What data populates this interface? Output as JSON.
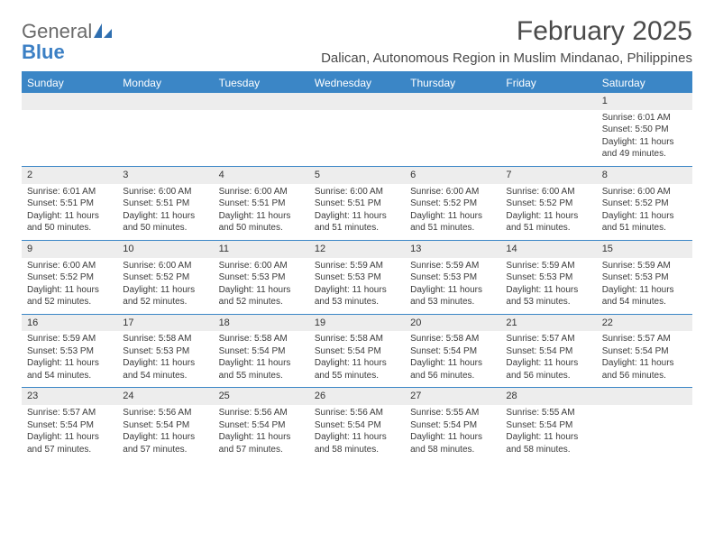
{
  "brand": {
    "word1": "General",
    "word2": "Blue",
    "color_general": "#6a6a6a",
    "color_blue": "#3b7fc4",
    "sail_color": "#2f6fb0"
  },
  "title": {
    "month_year": "February 2025",
    "location": "Dalican, Autonomous Region in Muslim Mindanao, Philippines",
    "title_color": "#4a4a4a",
    "title_fontsize": 30,
    "location_fontsize": 15
  },
  "style": {
    "header_bg": "#3b86c6",
    "header_text": "#ffffff",
    "daynum_bg": "#ededed",
    "row_divider": "#3b86c6",
    "cell_text": "#3a3a3a",
    "body_fontsize": 10,
    "daynum_fontsize": 11,
    "weekday_fontsize": 12
  },
  "weekdays": [
    "Sunday",
    "Monday",
    "Tuesday",
    "Wednesday",
    "Thursday",
    "Friday",
    "Saturday"
  ],
  "weeks": [
    {
      "nums": [
        "",
        "",
        "",
        "",
        "",
        "",
        "1"
      ],
      "cells": [
        null,
        null,
        null,
        null,
        null,
        null,
        {
          "sunrise": "6:01 AM",
          "sunset": "5:50 PM",
          "daylight": "11 hours and 49 minutes."
        }
      ]
    },
    {
      "nums": [
        "2",
        "3",
        "4",
        "5",
        "6",
        "7",
        "8"
      ],
      "cells": [
        {
          "sunrise": "6:01 AM",
          "sunset": "5:51 PM",
          "daylight": "11 hours and 50 minutes."
        },
        {
          "sunrise": "6:00 AM",
          "sunset": "5:51 PM",
          "daylight": "11 hours and 50 minutes."
        },
        {
          "sunrise": "6:00 AM",
          "sunset": "5:51 PM",
          "daylight": "11 hours and 50 minutes."
        },
        {
          "sunrise": "6:00 AM",
          "sunset": "5:51 PM",
          "daylight": "11 hours and 51 minutes."
        },
        {
          "sunrise": "6:00 AM",
          "sunset": "5:52 PM",
          "daylight": "11 hours and 51 minutes."
        },
        {
          "sunrise": "6:00 AM",
          "sunset": "5:52 PM",
          "daylight": "11 hours and 51 minutes."
        },
        {
          "sunrise": "6:00 AM",
          "sunset": "5:52 PM",
          "daylight": "11 hours and 51 minutes."
        }
      ]
    },
    {
      "nums": [
        "9",
        "10",
        "11",
        "12",
        "13",
        "14",
        "15"
      ],
      "cells": [
        {
          "sunrise": "6:00 AM",
          "sunset": "5:52 PM",
          "daylight": "11 hours and 52 minutes."
        },
        {
          "sunrise": "6:00 AM",
          "sunset": "5:52 PM",
          "daylight": "11 hours and 52 minutes."
        },
        {
          "sunrise": "6:00 AM",
          "sunset": "5:53 PM",
          "daylight": "11 hours and 52 minutes."
        },
        {
          "sunrise": "5:59 AM",
          "sunset": "5:53 PM",
          "daylight": "11 hours and 53 minutes."
        },
        {
          "sunrise": "5:59 AM",
          "sunset": "5:53 PM",
          "daylight": "11 hours and 53 minutes."
        },
        {
          "sunrise": "5:59 AM",
          "sunset": "5:53 PM",
          "daylight": "11 hours and 53 minutes."
        },
        {
          "sunrise": "5:59 AM",
          "sunset": "5:53 PM",
          "daylight": "11 hours and 54 minutes."
        }
      ]
    },
    {
      "nums": [
        "16",
        "17",
        "18",
        "19",
        "20",
        "21",
        "22"
      ],
      "cells": [
        {
          "sunrise": "5:59 AM",
          "sunset": "5:53 PM",
          "daylight": "11 hours and 54 minutes."
        },
        {
          "sunrise": "5:58 AM",
          "sunset": "5:53 PM",
          "daylight": "11 hours and 54 minutes."
        },
        {
          "sunrise": "5:58 AM",
          "sunset": "5:54 PM",
          "daylight": "11 hours and 55 minutes."
        },
        {
          "sunrise": "5:58 AM",
          "sunset": "5:54 PM",
          "daylight": "11 hours and 55 minutes."
        },
        {
          "sunrise": "5:58 AM",
          "sunset": "5:54 PM",
          "daylight": "11 hours and 56 minutes."
        },
        {
          "sunrise": "5:57 AM",
          "sunset": "5:54 PM",
          "daylight": "11 hours and 56 minutes."
        },
        {
          "sunrise": "5:57 AM",
          "sunset": "5:54 PM",
          "daylight": "11 hours and 56 minutes."
        }
      ]
    },
    {
      "nums": [
        "23",
        "24",
        "25",
        "26",
        "27",
        "28",
        ""
      ],
      "cells": [
        {
          "sunrise": "5:57 AM",
          "sunset": "5:54 PM",
          "daylight": "11 hours and 57 minutes."
        },
        {
          "sunrise": "5:56 AM",
          "sunset": "5:54 PM",
          "daylight": "11 hours and 57 minutes."
        },
        {
          "sunrise": "5:56 AM",
          "sunset": "5:54 PM",
          "daylight": "11 hours and 57 minutes."
        },
        {
          "sunrise": "5:56 AM",
          "sunset": "5:54 PM",
          "daylight": "11 hours and 58 minutes."
        },
        {
          "sunrise": "5:55 AM",
          "sunset": "5:54 PM",
          "daylight": "11 hours and 58 minutes."
        },
        {
          "sunrise": "5:55 AM",
          "sunset": "5:54 PM",
          "daylight": "11 hours and 58 minutes."
        },
        null
      ]
    }
  ],
  "labels": {
    "sunrise": "Sunrise: ",
    "sunset": "Sunset: ",
    "daylight": "Daylight: "
  }
}
